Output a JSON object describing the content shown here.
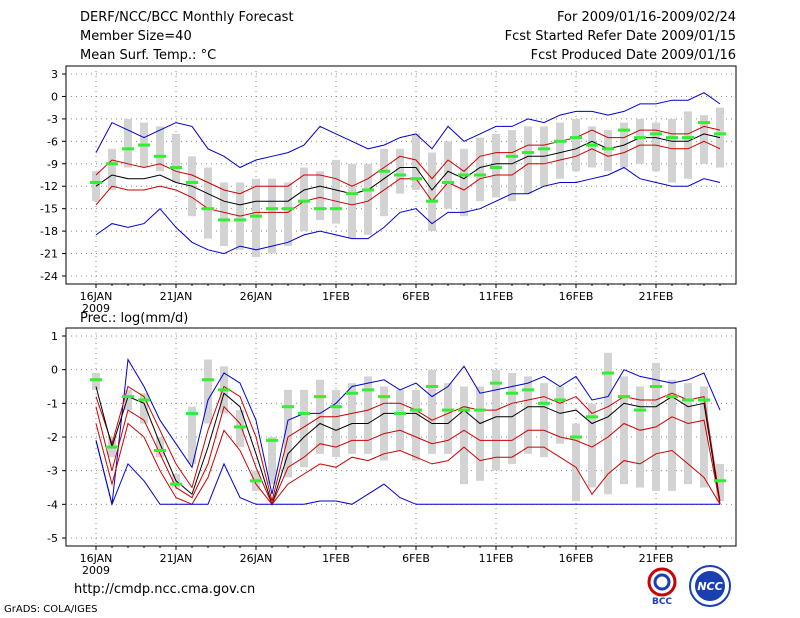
{
  "header": {
    "title": "DERF/NCC/BCC Monthly Forecast",
    "member": "Member Size=40",
    "variable": "Mean Surf. Temp.: °C",
    "period": "For 2009/01/16-2009/02/24",
    "started": "Fcst Started Refer Date 2009/01/15",
    "produced": "Fcst Produced Date 2009/01/16"
  },
  "footer": {
    "url": "http://cmdp.ncc.cma.gov.cn",
    "grads": "GrADS: COLA/IGES"
  },
  "logos": {
    "left": "BCC",
    "right": "NCC"
  },
  "colors": {
    "envelope": "#0000cc",
    "percentile": "#cc0000",
    "median": "#000000",
    "box": "#d3d3d3",
    "obs": "#33ee33",
    "grid": "#888888"
  },
  "chart_data": [
    {
      "type": "line",
      "title": "",
      "ylabel": "Mean Surf. Temp.: °C",
      "ylim": [
        -24,
        3
      ],
      "yticks": [
        "3",
        "0",
        "-3",
        "-6",
        "-9",
        "-12",
        "-15",
        "-18",
        "-21",
        "-24"
      ],
      "xticks": [
        "16JAN",
        "21JAN",
        "26JAN",
        "1FEB",
        "6FEB",
        "11FEB",
        "16FEB",
        "21FEB"
      ],
      "xyear": "2009",
      "days": 40,
      "series": [
        {
          "name": "max",
          "color": "#0000cc",
          "values": [
            -7.5,
            -3.5,
            -4.5,
            -5.5,
            -4.5,
            -3.5,
            -4,
            -7,
            -8,
            -9.5,
            -8.5,
            -8,
            -7.5,
            -6.5,
            -4,
            -5,
            -6,
            -7,
            -6.5,
            -5.5,
            -5,
            -7,
            -4,
            -6,
            -5,
            -4,
            -4,
            -3,
            -3.5,
            -2.5,
            -2,
            -2,
            -2.5,
            -2,
            -1,
            -1,
            -0.5,
            -0.5,
            0.5,
            -1
          ]
        },
        {
          "name": "p75",
          "color": "#cc0000",
          "values": [
            -10.5,
            -8.5,
            -9,
            -9.5,
            -9,
            -10,
            -10.5,
            -11.5,
            -12.5,
            -13,
            -12,
            -12,
            -12,
            -10.5,
            -10.5,
            -11,
            -12,
            -11,
            -9.5,
            -8,
            -8.5,
            -11,
            -8.5,
            -10,
            -8,
            -7.5,
            -7.5,
            -6.5,
            -6.5,
            -6,
            -5.5,
            -4.5,
            -5.5,
            -5.5,
            -4.5,
            -4.5,
            -5,
            -5,
            -4,
            -4.5
          ]
        },
        {
          "name": "median",
          "color": "#000000",
          "values": [
            -12,
            -10.5,
            -11,
            -11,
            -10.5,
            -11.5,
            -12,
            -13,
            -14,
            -14.5,
            -14,
            -14,
            -14,
            -12.5,
            -12,
            -12.5,
            -13,
            -12.5,
            -11,
            -9.5,
            -9.5,
            -12.5,
            -10,
            -11,
            -9.5,
            -9,
            -9,
            -8,
            -8,
            -7.5,
            -7,
            -6,
            -7,
            -6.5,
            -5.5,
            -5.5,
            -6,
            -6,
            -5,
            -5.5
          ]
        },
        {
          "name": "p25",
          "color": "#cc0000",
          "values": [
            -14.5,
            -12,
            -12.5,
            -12.5,
            -12,
            -12.5,
            -13.5,
            -15,
            -15.5,
            -16,
            -15.5,
            -15.5,
            -15.5,
            -14,
            -13.5,
            -14,
            -14.5,
            -14,
            -12.5,
            -11,
            -11,
            -14,
            -11.5,
            -12.5,
            -11,
            -10.5,
            -10.5,
            -9,
            -9,
            -8.5,
            -8,
            -7,
            -8,
            -7.5,
            -6.5,
            -6.5,
            -7,
            -7,
            -6,
            -7
          ]
        },
        {
          "name": "min",
          "color": "#0000cc",
          "values": [
            -18.5,
            -17,
            -17.5,
            -17,
            -15,
            -17.5,
            -19.5,
            -20.5,
            -21,
            -20,
            -20.5,
            -20,
            -19.5,
            -18.5,
            -18,
            -18.5,
            -19,
            -19,
            -17.5,
            -15.5,
            -15,
            -17,
            -15.5,
            -15.5,
            -15,
            -14,
            -13,
            -13,
            -12,
            -11.5,
            -11.5,
            -11,
            -10.5,
            -9.5,
            -11,
            -11.5,
            -12,
            -12,
            -11,
            -11.5
          ]
        },
        {
          "name": "obs",
          "color": "#33ee33",
          "values": [
            -11.5,
            -9,
            -7,
            -6.5,
            -8,
            -9.5,
            -11.5,
            -15,
            -16.5,
            -16.5,
            -16,
            -15,
            -15,
            -14,
            -15,
            -15,
            -13,
            -12.5,
            -10,
            -10.5,
            -11,
            -14,
            -11.5,
            -10.5,
            -10.5,
            -9.5,
            -8,
            -7.5,
            -7,
            -6,
            -5.5,
            -6.5,
            -7,
            -4.5,
            -5.5,
            -5,
            -5.5,
            -5.5,
            -3.5,
            -5
          ]
        }
      ],
      "box_low": [
        -14,
        -12.5,
        -9.5,
        -9.5,
        -10,
        -11.5,
        -16,
        -19,
        -20,
        -20.5,
        -21.5,
        -21,
        -20,
        -18,
        -16.5,
        -17,
        -19,
        -18.5,
        -16,
        -13,
        -12.5,
        -18,
        -15,
        -16,
        -14,
        -13.5,
        -14,
        -13,
        -12,
        -11,
        -10,
        -9.5,
        -10,
        -9.5,
        -9,
        -10,
        -11.5,
        -11,
        -9,
        -9.5
      ],
      "box_high": [
        -10,
        -7,
        -3,
        -3.5,
        -4,
        -5,
        -8,
        -9.5,
        -11.5,
        -11.5,
        -11,
        -11,
        -11.5,
        -9.5,
        -10,
        -8.5,
        -9,
        -9,
        -7,
        -7,
        -5,
        -7.5,
        -6,
        -7,
        -5.5,
        -5,
        -4.5,
        -4,
        -4,
        -3.5,
        -3,
        -4,
        -4.5,
        -3.5,
        -3,
        -3.5,
        -3,
        -2,
        -2.5,
        -1.5
      ]
    },
    {
      "type": "line",
      "title": "",
      "ylabel": "Prec.: log(mm/d)",
      "ylim": [
        -5,
        1
      ],
      "yticks": [
        "1",
        "0",
        "-1",
        "-2",
        "-3",
        "-4",
        "-5"
      ],
      "xticks": [
        "16JAN",
        "21JAN",
        "26JAN",
        "1FEB",
        "6FEB",
        "11FEB",
        "16FEB",
        "21FEB"
      ],
      "xyear": "2009",
      "days": 40,
      "series": [
        {
          "name": "max",
          "color": "#0000cc",
          "values": [
            -2.1,
            -4,
            0.3,
            -0.5,
            -1.5,
            -2.2,
            -2.9,
            -0.9,
            -0.1,
            -0.4,
            -1.5,
            -3.7,
            -1.5,
            -1.3,
            -1.3,
            -1,
            -0.5,
            -0.4,
            -0.3,
            -0.6,
            -0.4,
            -0.8,
            -0.5,
            0.1,
            -0.7,
            -0.6,
            -0.5,
            -0.4,
            -0.2,
            -0.5,
            -0.2,
            -0.9,
            -0.8,
            0,
            -0.2,
            -0.3,
            -0.4,
            -0.3,
            -0.1,
            -1.2
          ]
        },
        {
          "name": "p75",
          "color": "#cc0000",
          "values": [
            -0.8,
            -2.2,
            -0.5,
            -0.8,
            -1.8,
            -2.8,
            -3.5,
            -1.8,
            -0.5,
            -0.8,
            -2,
            -3.9,
            -2,
            -1.7,
            -1.4,
            -1.4,
            -1.3,
            -1.2,
            -1,
            -1,
            -1.2,
            -1.5,
            -1.3,
            -1.1,
            -1.2,
            -1.2,
            -1,
            -0.9,
            -0.8,
            -1,
            -0.8,
            -1.3,
            -1.1,
            -0.8,
            -0.9,
            -0.9,
            -0.7,
            -0.9,
            -0.8,
            -3.9
          ]
        },
        {
          "name": "median",
          "color": "#000000",
          "values": [
            -0.5,
            -2.3,
            -0.8,
            -1,
            -2.2,
            -3.3,
            -3.7,
            -2.3,
            -0.7,
            -1.1,
            -2.5,
            -4,
            -2.5,
            -2,
            -1.6,
            -1.8,
            -1.6,
            -1.6,
            -1.3,
            -1.3,
            -1.3,
            -1.6,
            -1.6,
            -1.2,
            -1.6,
            -1.4,
            -1.4,
            -1.1,
            -1.1,
            -1.3,
            -1.2,
            -1.6,
            -1.4,
            -1,
            -1.1,
            -1.1,
            -0.8,
            -1.1,
            -1,
            -4
          ]
        },
        {
          "name": "p25",
          "color": "#cc0000",
          "values": [
            -1.1,
            -3,
            -1.2,
            -1.5,
            -2.5,
            -3.5,
            -3.8,
            -2.8,
            -1.1,
            -1.6,
            -2.9,
            -4,
            -2.9,
            -2.6,
            -2.2,
            -2.3,
            -2.1,
            -2.1,
            -1.9,
            -1.8,
            -2,
            -2.2,
            -2.1,
            -1.8,
            -2.1,
            -2.1,
            -2.1,
            -1.8,
            -1.8,
            -2,
            -2.1,
            -2.3,
            -2,
            -1.6,
            -1.8,
            -1.7,
            -1.4,
            -1.6,
            -1.5,
            -4
          ]
        },
        {
          "name": "p05",
          "color": "#cc0000",
          "values": [
            -1.6,
            -3.4,
            -1.6,
            -2,
            -3,
            -3.8,
            -4,
            -3.2,
            -1.8,
            -2.4,
            -3.4,
            -4,
            -3.4,
            -3.1,
            -2.8,
            -2.9,
            -2.6,
            -2.7,
            -2.5,
            -2.4,
            -2.6,
            -2.8,
            -2.7,
            -2.3,
            -2.7,
            -2.6,
            -2.6,
            -2.3,
            -2.3,
            -2.6,
            -2.9,
            -3.7,
            -3.1,
            -2.7,
            -2.8,
            -2.5,
            -2.4,
            -2.8,
            -3.2,
            -4
          ]
        },
        {
          "name": "min",
          "color": "#0000cc",
          "values": [
            -2.1,
            -4,
            -2.8,
            -3.3,
            -4,
            -4,
            -4,
            -4,
            -2.8,
            -3.8,
            -4,
            -4,
            -4,
            -4,
            -3.9,
            -3.9,
            -4,
            -3.7,
            -3.4,
            -3.8,
            -4,
            -4,
            -4,
            -4,
            -4,
            -4,
            -4,
            -4,
            -4,
            -4,
            -4,
            -4,
            -4,
            -4,
            -4,
            -4,
            -4,
            -4,
            -4,
            -4
          ]
        },
        {
          "name": "obs",
          "color": "#33ee33",
          "values": [
            -0.3,
            -2.3,
            -0.8,
            -0.9,
            -2.4,
            -3.4,
            -1.3,
            -0.3,
            -0.6,
            -1.7,
            -3.3,
            -2.1,
            -1.1,
            -1.3,
            -0.8,
            -1.1,
            -0.7,
            -0.6,
            -0.8,
            -1.3,
            -1.2,
            -0.5,
            -1.2,
            -1.2,
            -1.2,
            -0.4,
            -0.7,
            -0.6,
            -1,
            -0.9,
            -2,
            -1.4,
            -0.1,
            -0.8,
            -1.2,
            -0.5,
            -0.8,
            -0.9,
            -0.9,
            -3.3
          ]
        }
      ],
      "box_low": [
        -0.6,
        -2.6,
        -1.2,
        -1.6,
        -2.6,
        -3.5,
        -2.8,
        -1.6,
        -1.3,
        -2.3,
        -3.6,
        -3.4,
        -3.2,
        -2.9,
        -2.5,
        -2.6,
        -2.5,
        -2.5,
        -2.7,
        -2.4,
        -2.7,
        -2.5,
        -2.5,
        -3.4,
        -3.3,
        -3,
        -2.8,
        -2.5,
        -2.6,
        -2.2,
        -3.9,
        -3.5,
        -3.7,
        -3.4,
        -3.5,
        -3.6,
        -3.6,
        -3.4,
        -3.5,
        -3.9
      ],
      "box_high": [
        -0.1,
        -2,
        -0.6,
        -0.7,
        -2,
        -3.1,
        -1.1,
        0.3,
        0.1,
        -1.2,
        -3,
        -2,
        -0.6,
        -0.6,
        -0.3,
        -0.6,
        -0.4,
        -0.2,
        -0.5,
        -0.6,
        -0.6,
        0,
        -0.4,
        -0.5,
        -0.5,
        0,
        -0.1,
        -0.2,
        -0.4,
        -0.5,
        -1.6,
        -1,
        0.5,
        -0.2,
        -0.5,
        0.2,
        -0.3,
        -0.4,
        -0.5,
        -2.8
      ]
    }
  ]
}
